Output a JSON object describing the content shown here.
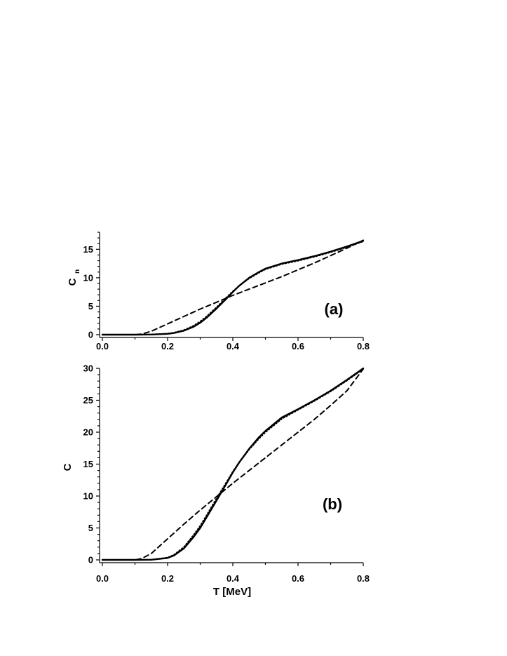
{
  "chart_data": [
    {
      "type": "line",
      "panel_label": "(a)",
      "ylabel": "C",
      "ylabel_sub": "n",
      "xlabel": "",
      "xlim": [
        0.0,
        0.8
      ],
      "ylim": [
        0,
        18
      ],
      "xticks": [
        "0.0",
        "0.2",
        "0.4",
        "0.6",
        "0.8"
      ],
      "xtick_values": [
        0.0,
        0.2,
        0.4,
        0.6,
        0.8
      ],
      "yticks": [
        "0",
        "5",
        "10",
        "15"
      ],
      "ytick_values": [
        0,
        5,
        10,
        15
      ],
      "grid": false,
      "series": [
        {
          "style": "solid",
          "x": [
            0.0,
            0.1,
            0.15,
            0.2,
            0.22,
            0.25,
            0.28,
            0.3,
            0.32,
            0.35,
            0.38,
            0.4,
            0.42,
            0.45,
            0.48,
            0.5,
            0.55,
            0.6,
            0.65,
            0.7,
            0.75,
            0.8
          ],
          "values": [
            0,
            0,
            0.02,
            0.15,
            0.3,
            0.7,
            1.4,
            2.1,
            3.0,
            4.6,
            6.3,
            7.5,
            8.6,
            10.0,
            11.0,
            11.6,
            12.5,
            13.1,
            13.8,
            14.6,
            15.5,
            16.5
          ]
        },
        {
          "style": "dotted",
          "x": [
            0.0,
            0.1,
            0.15,
            0.2,
            0.22,
            0.25,
            0.28,
            0.3,
            0.32,
            0.35,
            0.38,
            0.4,
            0.42,
            0.45,
            0.48,
            0.5,
            0.55,
            0.6,
            0.65,
            0.7,
            0.75,
            0.8
          ],
          "values": [
            0,
            0,
            0.03,
            0.18,
            0.35,
            0.8,
            1.55,
            2.3,
            3.2,
            4.8,
            6.5,
            7.6,
            8.6,
            9.9,
            10.9,
            11.5,
            12.4,
            13.0,
            13.7,
            14.5,
            15.4,
            16.4
          ]
        },
        {
          "style": "dashed",
          "x": [
            0.0,
            0.1,
            0.12,
            0.15,
            0.2,
            0.25,
            0.3,
            0.35,
            0.4,
            0.45,
            0.5,
            0.55,
            0.6,
            0.65,
            0.7,
            0.75,
            0.8
          ],
          "values": [
            0,
            0,
            0.1,
            0.6,
            1.9,
            3.2,
            4.5,
            5.7,
            6.9,
            8.0,
            9.1,
            10.2,
            11.4,
            12.6,
            13.9,
            15.2,
            16.6
          ]
        }
      ]
    },
    {
      "type": "line",
      "panel_label": "(b)",
      "ylabel": "C",
      "xlabel": "T [MeV]",
      "xlim": [
        0.0,
        0.8
      ],
      "ylim": [
        0,
        30
      ],
      "xticks": [
        "0.0",
        "0.2",
        "0.4",
        "0.6",
        "0.8"
      ],
      "xtick_values": [
        0.0,
        0.2,
        0.4,
        0.6,
        0.8
      ],
      "yticks": [
        "0",
        "5",
        "10",
        "15",
        "20",
        "25",
        "30"
      ],
      "ytick_values": [
        0,
        5,
        10,
        15,
        20,
        25,
        30
      ],
      "grid": false,
      "series": [
        {
          "style": "solid",
          "x": [
            0.0,
            0.1,
            0.15,
            0.2,
            0.22,
            0.25,
            0.28,
            0.3,
            0.32,
            0.35,
            0.38,
            0.4,
            0.42,
            0.45,
            0.48,
            0.5,
            0.55,
            0.6,
            0.65,
            0.7,
            0.75,
            0.8
          ],
          "values": [
            0,
            0,
            0.02,
            0.3,
            0.7,
            1.8,
            3.6,
            5.0,
            6.7,
            9.3,
            11.9,
            13.7,
            15.3,
            17.4,
            19.2,
            20.2,
            22.3,
            23.6,
            25.0,
            26.5,
            28.2,
            30.0
          ]
        },
        {
          "style": "dotted",
          "x": [
            0.0,
            0.1,
            0.15,
            0.2,
            0.22,
            0.25,
            0.28,
            0.3,
            0.32,
            0.35,
            0.38,
            0.4,
            0.42,
            0.45,
            0.48,
            0.5,
            0.55,
            0.6,
            0.65,
            0.7,
            0.75,
            0.8
          ],
          "values": [
            0,
            0,
            0.03,
            0.35,
            0.8,
            2.0,
            3.9,
            5.3,
            7.0,
            9.6,
            12.1,
            13.8,
            15.3,
            17.3,
            19.0,
            20.0,
            22.1,
            23.5,
            24.9,
            26.4,
            28.1,
            29.9
          ]
        },
        {
          "style": "dashed",
          "x": [
            0.0,
            0.1,
            0.12,
            0.15,
            0.2,
            0.25,
            0.3,
            0.35,
            0.4,
            0.45,
            0.5,
            0.55,
            0.6,
            0.65,
            0.7,
            0.75,
            0.8
          ],
          "values": [
            0,
            0,
            0.2,
            1.0,
            3.3,
            5.6,
            7.8,
            9.9,
            12.0,
            14.0,
            16.0,
            18.0,
            20.0,
            22.0,
            24.2,
            26.5,
            29.9
          ]
        }
      ]
    }
  ]
}
